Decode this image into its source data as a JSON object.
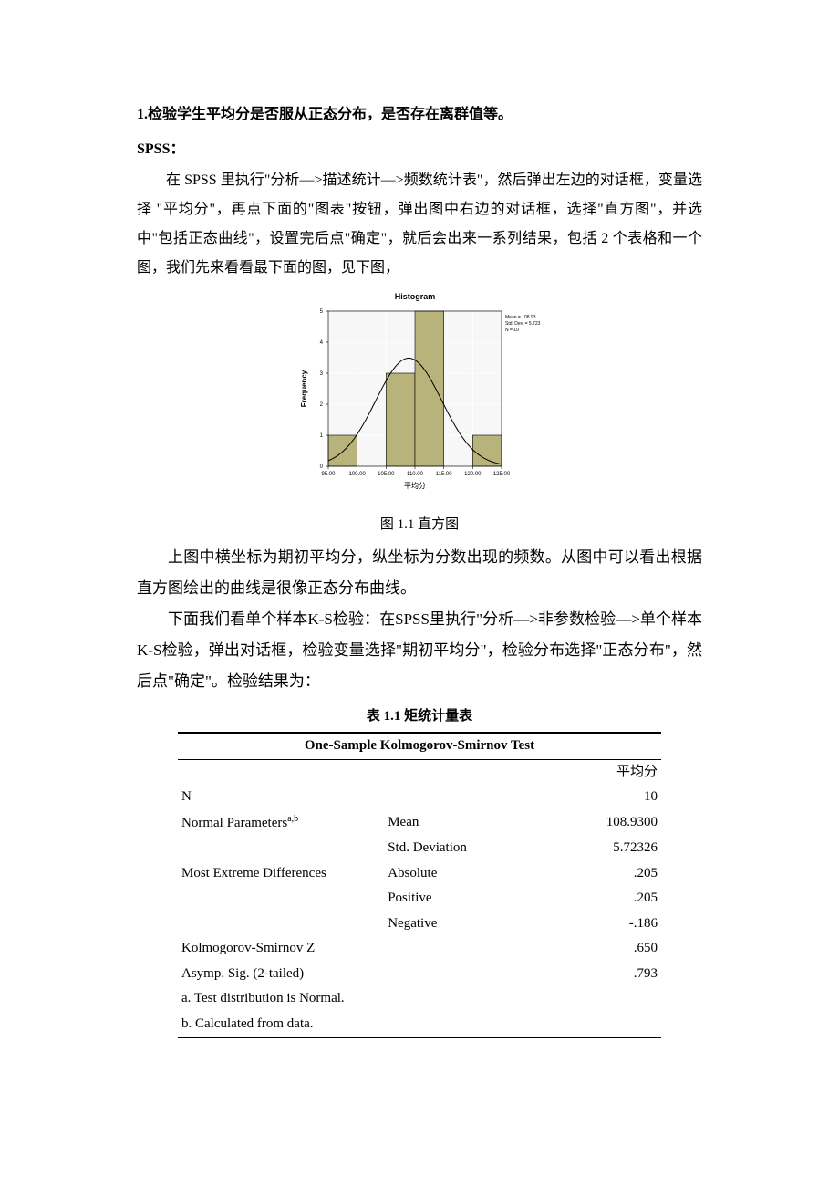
{
  "heading1": "1.检验学生平均分是否服从正态分布，是否存在离群值等。",
  "heading2": "SPSS：",
  "para1": "在 SPSS 里执行\"分析—>描述统计—>频数统计表\"，然后弹出左边的对话框，变量选择 \"平均分\"，再点下面的\"图表\"按钮，弹出图中右边的对话框，选择\"直方图\"，并选中\"包括正态曲线\"，设置完后点\"确定\"，就后会出来一系列结果，包括 2 个表格和一个图，我们先来看看最下面的图，见下图，",
  "figCaption": "图 1.1 直方图",
  "para2": "上图中横坐标为期初平均分，纵坐标为分数出现的频数。从图中可以看出根据直方图绘出的曲线是很像正态分布曲线。",
  "para3": "下面我们看单个样本K-S检验：在SPSS里执行\"分析—>非参数检验—>单个样本K-S检验，弹出对话框，检验变量选择\"期初平均分\"，检验分布选择\"正态分布\"，然后点\"确定\"。检验结果为：",
  "tableTitle": "表 1.1 矩统计量表",
  "chart": {
    "type": "histogram-with-normal-curve",
    "title": "Histogram",
    "xlabel": "平均分",
    "ylabel": "Frequency",
    "bar_fill": "#b8b37a",
    "bar_stroke": "#000000",
    "plot_bg": "#f7f7f7",
    "grid_color": "#ffffff",
    "curve_color": "#000000",
    "xticks": [
      "95.00",
      "100.00",
      "105.00",
      "110.00",
      "115.00",
      "120.00",
      "125.00"
    ],
    "yticks": [
      "0",
      "1",
      "2",
      "3",
      "4",
      "5"
    ],
    "ymax": 5,
    "bars": [
      {
        "x": 97.5,
        "h": 1
      },
      {
        "x": 107.5,
        "h": 3
      },
      {
        "x": 112.5,
        "h": 5
      },
      {
        "x": 122.5,
        "h": 1
      }
    ],
    "bin_width": 5,
    "xlim": [
      95,
      125
    ],
    "stats": {
      "mean_label": "Mean = 108.93",
      "sd_label": "Std. Dev. = 5.723",
      "n_label": "N = 10"
    },
    "mean": 108.93,
    "sd": 5.723,
    "n": 10,
    "title_fontsize": 9,
    "tick_fontsize": 6,
    "label_fontsize": 8,
    "stats_fontsize": 5
  },
  "ks": {
    "title": "One-Sample Kolmogorov-Smirnov Test",
    "colhead": "平均分",
    "rows": {
      "n_label": "N",
      "n_val": "10",
      "np_label": "Normal Parameters",
      "np_sup": "a,b",
      "mean_label": "Mean",
      "mean_val": "108.9300",
      "sd_label": "Std. Deviation",
      "sd_val": "5.72326",
      "med_label": "Most Extreme Differences",
      "abs_label": "Absolute",
      "abs_val": ".205",
      "pos_label": "Positive",
      "pos_val": ".205",
      "neg_label": "Negative",
      "neg_val": "-.186",
      "ksz_label": "Kolmogorov-Smirnov Z",
      "ksz_val": ".650",
      "sig_label": "Asymp. Sig. (2-tailed)",
      "sig_val": ".793",
      "foot_a": "a. Test distribution is Normal.",
      "foot_b": "b. Calculated from data."
    }
  }
}
